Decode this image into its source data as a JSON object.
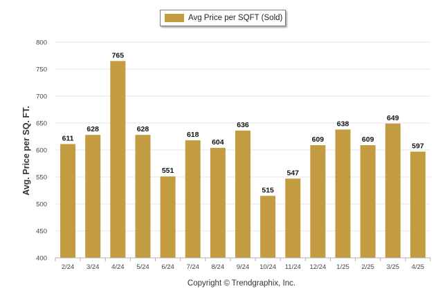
{
  "chart_data": {
    "type": "bar",
    "categories": [
      "2/24",
      "3/24",
      "4/24",
      "5/24",
      "6/24",
      "7/24",
      "8/24",
      "9/24",
      "10/24",
      "11/24",
      "12/24",
      "1/25",
      "2/25",
      "3/25",
      "4/25"
    ],
    "series": [
      {
        "name": "Avg Price per SQFT (Sold)",
        "values": [
          611,
          628,
          765,
          628,
          551,
          618,
          604,
          636,
          515,
          547,
          609,
          638,
          609,
          649,
          597
        ]
      }
    ],
    "ylabel": "Avg. Price per SQ. FT.",
    "xlabel": "",
    "ylim": [
      400,
      800
    ],
    "yticks": [
      400,
      450,
      500,
      550,
      600,
      650,
      700,
      750,
      800
    ],
    "grid": true,
    "legend_position": "top-center",
    "data_labels": true,
    "bar_color": "#C39C41"
  },
  "footer": "Copyright © Trendgraphix, Inc.",
  "colors": {
    "bar": "#C39C41",
    "grid": "#e6e6e6",
    "axis": "#b0b0b0"
  }
}
